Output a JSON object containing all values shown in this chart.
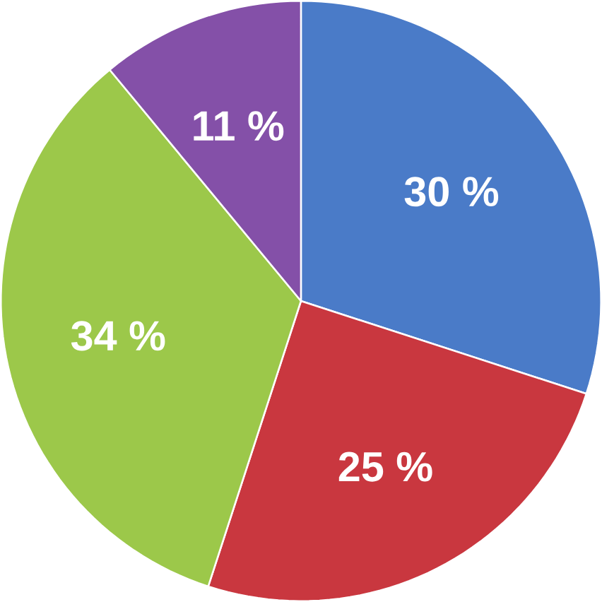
{
  "chart_data": {
    "type": "pie",
    "categories": [
      null,
      null,
      null,
      null
    ],
    "values": [
      30,
      25,
      34,
      11
    ],
    "colors": [
      "#4a7bc8",
      "#c9373f",
      "#9cc84a",
      "#8450a8"
    ],
    "value_labels": [
      "30 %",
      "25 %",
      "34 %",
      "11 %"
    ]
  }
}
